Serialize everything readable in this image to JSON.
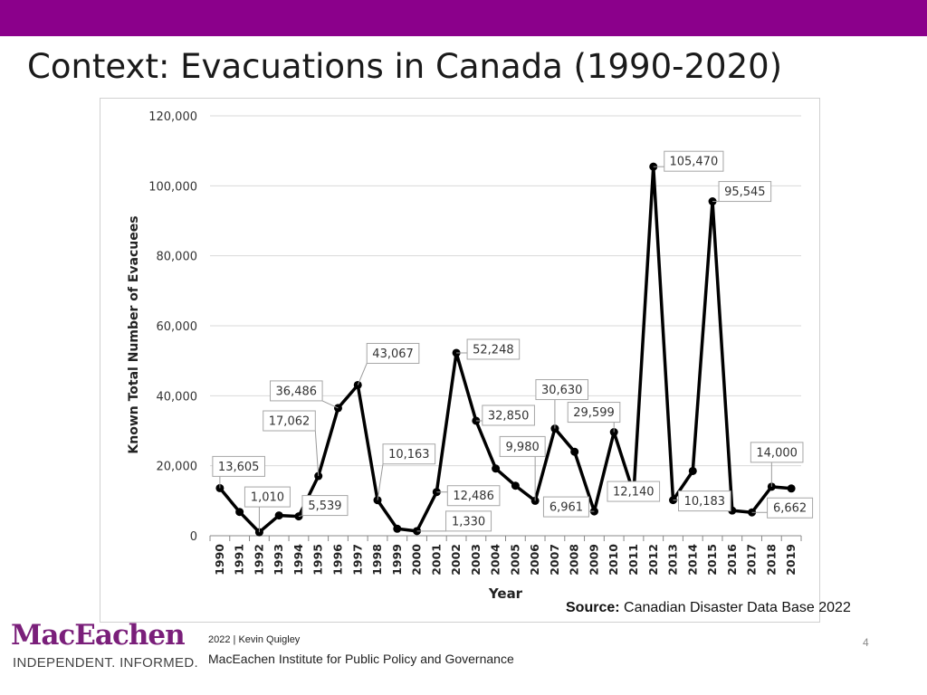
{
  "header": {
    "title": "Context: Evacuations in Canada (1990-2020)",
    "bar_color": "#8b008b"
  },
  "chart_data": {
    "type": "line",
    "title": "",
    "xlabel": "Year",
    "ylabel": "Known Total Number of Evacuees",
    "ylim": [
      0,
      120000
    ],
    "yticks": [
      0,
      20000,
      40000,
      60000,
      80000,
      100000,
      120000
    ],
    "ytick_labels": [
      "0",
      "20,000",
      "40,000",
      "60,000",
      "80,000",
      "100,000",
      "120,000"
    ],
    "grid": true,
    "x": [
      1990,
      1991,
      1992,
      1993,
      1994,
      1995,
      1996,
      1997,
      1998,
      1999,
      2000,
      2001,
      2002,
      2003,
      2004,
      2005,
      2006,
      2007,
      2008,
      2009,
      2010,
      2011,
      2012,
      2013,
      2014,
      2015,
      2016,
      2017,
      2018,
      2019
    ],
    "values": [
      13605,
      6800,
      1010,
      5800,
      5539,
      17062,
      36486,
      43067,
      10163,
      2000,
      1330,
      12486,
      52248,
      32850,
      19200,
      14300,
      9980,
      30630,
      24000,
      6961,
      29599,
      12140,
      105470,
      10183,
      18500,
      95545,
      7200,
      6662,
      14000,
      13500
    ],
    "data_labels": [
      {
        "year": 1990,
        "text": "13,605"
      },
      {
        "year": 1992,
        "text": "1,010"
      },
      {
        "year": 1994,
        "text": "5,539"
      },
      {
        "year": 1995,
        "text": "17,062"
      },
      {
        "year": 1996,
        "text": "36,486"
      },
      {
        "year": 1997,
        "text": "43,067"
      },
      {
        "year": 1998,
        "text": "10,163"
      },
      {
        "year": 2000,
        "text": "1,330"
      },
      {
        "year": 2001,
        "text": "12,486"
      },
      {
        "year": 2002,
        "text": "52,248"
      },
      {
        "year": 2003,
        "text": "32,850"
      },
      {
        "year": 2006,
        "text": "9,980"
      },
      {
        "year": 2007,
        "text": "30,630"
      },
      {
        "year": 2009,
        "text": "6,961"
      },
      {
        "year": 2010,
        "text": "29,599"
      },
      {
        "year": 2011,
        "text": "12,140"
      },
      {
        "year": 2012,
        "text": "105,470"
      },
      {
        "year": 2013,
        "text": "10,183"
      },
      {
        "year": 2015,
        "text": "95,545"
      },
      {
        "year": 2017,
        "text": "6,662"
      },
      {
        "year": 2018,
        "text": "14,000"
      }
    ],
    "line_color": "#000000"
  },
  "source": {
    "label": "Source:",
    "text": " Canadian Disaster Data Base 2022"
  },
  "footer": {
    "logo_name": "MacEachen",
    "logo_color": "#7a1f7a",
    "tagline": "INDEPENDENT. INFORMED.",
    "line1": "2022 | Kevin Quigley",
    "line2": "MacEachen Institute for Public Policy and Governance",
    "page_number": "4"
  }
}
